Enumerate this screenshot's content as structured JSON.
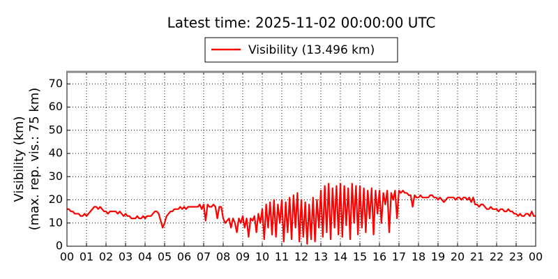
{
  "chart_data": {
    "type": "line",
    "title": "Latest time: 2025-11-02 00:00:00 UTC",
    "ylabel": [
      "Visibility (km)",
      "(max. rep. vis.: 75 km)"
    ],
    "xlim": [
      0,
      24
    ],
    "ylim": [
      0,
      75.5
    ],
    "yticks": [
      0,
      10,
      20,
      30,
      40,
      50,
      60,
      70
    ],
    "xticks": [
      {
        "value": 0,
        "label": "00"
      },
      {
        "value": 1,
        "label": "01"
      },
      {
        "value": 2,
        "label": "02"
      },
      {
        "value": 3,
        "label": "03"
      },
      {
        "value": 4,
        "label": "04"
      },
      {
        "value": 5,
        "label": "05"
      },
      {
        "value": 6,
        "label": "06"
      },
      {
        "value": 7,
        "label": "07"
      },
      {
        "value": 8,
        "label": "08"
      },
      {
        "value": 9,
        "label": "09"
      },
      {
        "value": 10,
        "label": "10"
      },
      {
        "value": 11,
        "label": "11"
      },
      {
        "value": 12,
        "label": "12"
      },
      {
        "value": 13,
        "label": "13"
      },
      {
        "value": 14,
        "label": "14"
      },
      {
        "value": 15,
        "label": "15"
      },
      {
        "value": 16,
        "label": "16"
      },
      {
        "value": 17,
        "label": "17"
      },
      {
        "value": 18,
        "label": "18"
      },
      {
        "value": 19,
        "label": "19"
      },
      {
        "value": 20,
        "label": "20"
      },
      {
        "value": 21,
        "label": "21"
      },
      {
        "value": 22,
        "label": "22"
      },
      {
        "value": 23,
        "label": "23"
      },
      {
        "value": 24,
        "label": "00"
      }
    ],
    "grid": true,
    "x": [
      0,
      0.1,
      0.2,
      0.3,
      0.4,
      0.5,
      0.6,
      0.7,
      0.8,
      0.9,
      1,
      1.1,
      1.2,
      1.3,
      1.4,
      1.5,
      1.6,
      1.7,
      1.8,
      1.9,
      2,
      2.1,
      2.2,
      2.3,
      2.4,
      2.5,
      2.6,
      2.7,
      2.8,
      2.9,
      3,
      3.1,
      3.2,
      3.3,
      3.4,
      3.5,
      3.6,
      3.7,
      3.8,
      3.9,
      4,
      4.1,
      4.2,
      4.3,
      4.4,
      4.5,
      4.6,
      4.7,
      4.8,
      4.9,
      5,
      5.1,
      5.2,
      5.3,
      5.4,
      5.5,
      5.6,
      5.7,
      5.8,
      5.9,
      6,
      6.1,
      6.2,
      6.3,
      6.4,
      6.5,
      6.6,
      6.7,
      6.8,
      6.9,
      7,
      7.1,
      7.2,
      7.3,
      7.4,
      7.5,
      7.6,
      7.7,
      7.8,
      7.9,
      8,
      8.1,
      8.2,
      8.3,
      8.4,
      8.5,
      8.6,
      8.7,
      8.8,
      8.9,
      9,
      9.1,
      9.2,
      9.3,
      9.4,
      9.5,
      9.6,
      9.7,
      9.8,
      9.9,
      10,
      10.1,
      10.2,
      10.3,
      10.4,
      10.5,
      10.6,
      10.7,
      10.8,
      10.9,
      11,
      11.1,
      11.2,
      11.3,
      11.4,
      11.5,
      11.6,
      11.7,
      11.8,
      11.9,
      12,
      12.1,
      12.2,
      12.3,
      12.4,
      12.5,
      12.6,
      12.7,
      12.8,
      12.9,
      13,
      13.1,
      13.2,
      13.3,
      13.4,
      13.5,
      13.6,
      13.7,
      13.8,
      13.9,
      14,
      14.1,
      14.2,
      14.3,
      14.4,
      14.5,
      14.6,
      14.7,
      14.8,
      14.9,
      15,
      15.1,
      15.2,
      15.3,
      15.4,
      15.5,
      15.6,
      15.7,
      15.8,
      15.9,
      16,
      16.1,
      16.2,
      16.3,
      16.4,
      16.5,
      16.6,
      16.7,
      16.8,
      16.9,
      17,
      17.1,
      17.2,
      17.3,
      17.4,
      17.5,
      17.6,
      17.7,
      17.8,
      17.9,
      18,
      18.1,
      18.2,
      18.3,
      18.4,
      18.5,
      18.6,
      18.7,
      18.8,
      18.9,
      19,
      19.1,
      19.2,
      19.3,
      19.4,
      19.5,
      19.6,
      19.7,
      19.8,
      19.9,
      20,
      20.1,
      20.2,
      20.3,
      20.4,
      20.5,
      20.6,
      20.7,
      20.8,
      20.9,
      21,
      21.1,
      21.2,
      21.3,
      21.4,
      21.5,
      21.6,
      21.7,
      21.8,
      21.9,
      22,
      22.1,
      22.2,
      22.3,
      22.4,
      22.5,
      22.6,
      22.7,
      22.8,
      22.9,
      23,
      23.1,
      23.2,
      23.3,
      23.4,
      23.5,
      23.6,
      23.7,
      23.8,
      23.9,
      24
    ],
    "series": [
      {
        "name": "Visibility (13.496 km)",
        "color": "#ff0000",
        "values": [
          16,
          16,
          15,
          15,
          14,
          14,
          14,
          13,
          13,
          14,
          13,
          14,
          15,
          16,
          17,
          17,
          16,
          17,
          16,
          15,
          15,
          14,
          15,
          15,
          15,
          15,
          14,
          15,
          14,
          13,
          14,
          13,
          13,
          12,
          12,
          12,
          13,
          12,
          12,
          13,
          12,
          13,
          13,
          13,
          14,
          15,
          15,
          14,
          11,
          8,
          10,
          13,
          14,
          15,
          15,
          16,
          16,
          16,
          17,
          16,
          17,
          16,
          17,
          17,
          17,
          17,
          17,
          17,
          18,
          16,
          18,
          11,
          18,
          17,
          17,
          18,
          17,
          12,
          17,
          17,
          12,
          10,
          11,
          12,
          8,
          12,
          10,
          6,
          12,
          10,
          13,
          8,
          12,
          4,
          12,
          11,
          13,
          6,
          14,
          10,
          16,
          3,
          18,
          8,
          19,
          5,
          20,
          4,
          18,
          10,
          20,
          2,
          19,
          6,
          21,
          3,
          22,
          8,
          23,
          2,
          20,
          4,
          19,
          1,
          18,
          3,
          21,
          2,
          20,
          8,
          24,
          4,
          26,
          6,
          27,
          3,
          25,
          8,
          26,
          5,
          27,
          4,
          26,
          9,
          25,
          3,
          27,
          10,
          26,
          5,
          26,
          8,
          25,
          6,
          24,
          12,
          25,
          5,
          24,
          14,
          24,
          10,
          23,
          18,
          24,
          6,
          23,
          20,
          24,
          12,
          24,
          23,
          24,
          23,
          23,
          22,
          22,
          17,
          22,
          21,
          21,
          22,
          21,
          21,
          21,
          21,
          22,
          22,
          21,
          21,
          20,
          21,
          20,
          19,
          20,
          21,
          21,
          21,
          21,
          20,
          21,
          21,
          20,
          21,
          21,
          20,
          21,
          19,
          21,
          18,
          18,
          17,
          18,
          18,
          17,
          16,
          16,
          17,
          16,
          16,
          16,
          15,
          16,
          16,
          15,
          15,
          16,
          15,
          15,
          14,
          14,
          13,
          14,
          13,
          13,
          14,
          14,
          13,
          15,
          13,
          13
        ]
      }
    ]
  }
}
